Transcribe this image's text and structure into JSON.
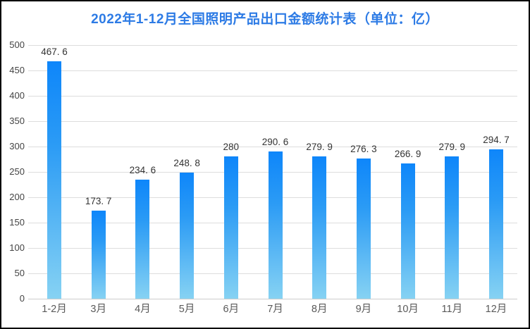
{
  "chart_data": {
    "type": "bar",
    "title": "2022年1-12月全国照明产品出口金额统计表（单位：亿）",
    "categories": [
      "1-2月",
      "3月",
      "4月",
      "5月",
      "6月",
      "7月",
      "8月",
      "9月",
      "10月",
      "11月",
      "12月"
    ],
    "values": [
      467.6,
      173.7,
      234.6,
      248.8,
      280,
      290.6,
      279.9,
      276.3,
      266.9,
      279.9,
      294.7
    ],
    "value_labels": [
      "467. 6",
      "173. 7",
      "234. 6",
      "248. 8",
      "280",
      "290. 6",
      "279. 9",
      "276. 3",
      "266. 9",
      "279. 9",
      "294. 7"
    ],
    "xlabel": "",
    "ylabel": "",
    "ylim": [
      0,
      500
    ],
    "yticks": [
      0,
      50,
      100,
      150,
      200,
      250,
      300,
      350,
      400,
      450,
      500
    ],
    "grid": true,
    "legend": "none",
    "colors": {
      "title": "#2d7be5",
      "bar_gradient_top": "#0e86fa",
      "bar_gradient_bottom": "#86d2f3",
      "gridline": "#dddddd",
      "axis_line": "#cccccc",
      "y_tick_label": "#444444",
      "x_tick_label": "#595959",
      "value_label": "#333333",
      "background": "#ffffff",
      "frame_border": "#000000"
    }
  }
}
